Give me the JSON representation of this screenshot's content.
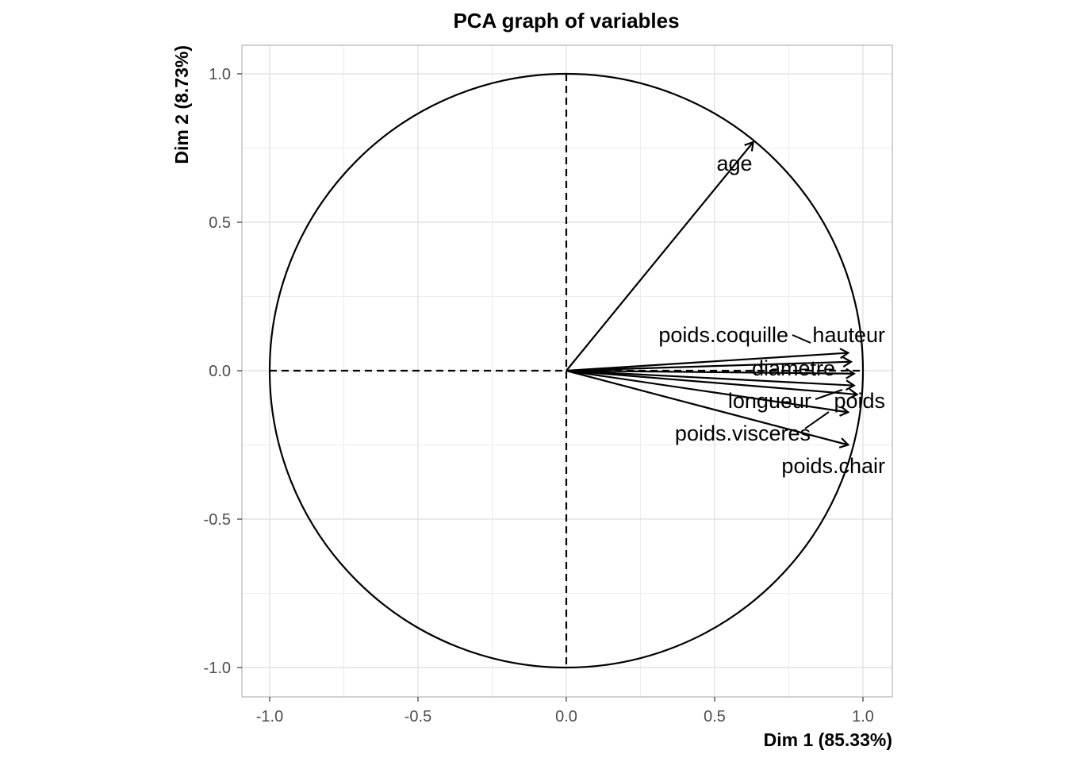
{
  "chart_data": {
    "type": "scatter",
    "subtype": "pca-correlation-circle",
    "title": "PCA graph of variables",
    "xlabel": "Dim 1 (85.33%)",
    "ylabel": "Dim 2 (8.73%)",
    "xlim": [
      -1.1,
      1.1
    ],
    "ylim": [
      -1.1,
      1.1
    ],
    "xticks": [
      -1.0,
      -0.5,
      0.0,
      0.5,
      1.0
    ],
    "yticks": [
      -1.0,
      -0.5,
      0.0,
      0.5,
      1.0
    ],
    "xtick_labels": [
      "-1.0",
      "-0.5",
      "0.0",
      "0.5",
      "1.0"
    ],
    "ytick_labels": [
      "-1.0",
      "-0.5",
      "0.0",
      "0.5",
      "1.0"
    ],
    "grid": true,
    "unit_circle": true,
    "variables": [
      {
        "name": "age",
        "x": 0.63,
        "y": 0.77
      },
      {
        "name": "poids.coquille",
        "x": 0.95,
        "y": 0.06
      },
      {
        "name": "hauteur",
        "x": 0.96,
        "y": 0.03
      },
      {
        "name": "diametre",
        "x": 0.97,
        "y": -0.01
      },
      {
        "name": "longueur",
        "x": 0.97,
        "y": -0.05
      },
      {
        "name": "poids",
        "x": 0.98,
        "y": -0.08
      },
      {
        "name": "poids.visceres",
        "x": 0.95,
        "y": -0.14
      },
      {
        "name": "poids.chair",
        "x": 0.95,
        "y": -0.25
      }
    ],
    "colors": {
      "arrow": "#000000",
      "grid": "#dedede",
      "panel_border": "#b3b3b3",
      "tick_text": "#4d4d4d"
    }
  }
}
